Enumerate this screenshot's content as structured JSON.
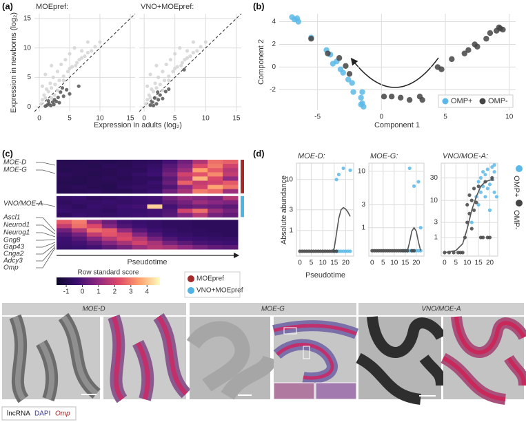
{
  "panel_labels": [
    "(a)",
    "(b)",
    "(c)",
    "(d)",
    "(e)"
  ],
  "chart_data": [
    {
      "type": "scatter",
      "title": "MOEpref:",
      "x_label": "Expression in adults (log₂)",
      "y_label": "Expression in newborns (log₂)",
      "xlim": [
        -0.8,
        15.8
      ],
      "ylim": [
        -0.8,
        15.8
      ],
      "xticks": [
        0,
        5,
        10,
        15
      ],
      "yticks": [
        0,
        5,
        10,
        15
      ],
      "grid": true,
      "identity_line": true,
      "series": [
        {
          "color": "#d4d4d4",
          "x": [
            0.3,
            0.5,
            0.8,
            1,
            1.2,
            1.5,
            1.8,
            2,
            2.3,
            2.6,
            3,
            3.3,
            3.6,
            4,
            4.3,
            4.7,
            5,
            5.4,
            5.8,
            6.2,
            6.6,
            7,
            7.5,
            8,
            8.6,
            9.2,
            10,
            1,
            1.5,
            2,
            2.5,
            3,
            4,
            5,
            6,
            7,
            8,
            0.5,
            1,
            2
          ],
          "values": [
            0.5,
            1.2,
            2,
            1.5,
            3,
            2.6,
            4,
            3.2,
            5,
            3.8,
            6,
            4.5,
            7.2,
            5.2,
            8,
            6,
            9,
            6.8,
            10,
            7.5,
            8,
            9.5,
            8.6,
            11,
            9.5,
            10.2,
            11,
            0.2,
            0.8,
            1.5,
            2,
            2.8,
            4.5,
            6.5,
            7,
            8.3,
            9.2,
            3.5,
            5.5,
            7
          ]
        },
        {
          "color": "#555555",
          "x": [
            1,
            1.3,
            1.6,
            1.9,
            2.2,
            2.5,
            2.8,
            3.1,
            3.5,
            4,
            4.5,
            5,
            1.5,
            2.4,
            3.3,
            6.5,
            3.8
          ],
          "values": [
            0.1,
            0.3,
            0.5,
            0.2,
            0.8,
            1.2,
            0.9,
            1.6,
            2.5,
            1.8,
            2.9,
            2.2,
            1,
            0.4,
            0.7,
            3.5,
            3.2
          ]
        }
      ]
    },
    {
      "type": "scatter",
      "title": "VNO+MOEpref:",
      "xlim": [
        -0.8,
        15.8
      ],
      "ylim": [
        -0.8,
        15.8
      ],
      "xticks": [
        0,
        5,
        10,
        15
      ],
      "grid": true,
      "identity_line": true,
      "series": [
        {
          "color": "#d4d4d4",
          "x": [
            0.3,
            0.5,
            0.8,
            1,
            1.2,
            1.5,
            1.8,
            2,
            2.3,
            2.6,
            3,
            3.3,
            3.6,
            4,
            4.3,
            4.7,
            5,
            5.4,
            5.8,
            6.2,
            6.6,
            7,
            7.5,
            8,
            8.6,
            9.2,
            10,
            1,
            1.5,
            2,
            2.5,
            3,
            4,
            5,
            6,
            7,
            8,
            0.5,
            1,
            2
          ],
          "values": [
            0.5,
            1.2,
            2,
            1.5,
            3,
            2.6,
            4,
            3.2,
            5,
            3.8,
            6,
            4.5,
            7.2,
            5.2,
            8,
            6,
            9,
            6.8,
            10,
            7.5,
            8,
            9.5,
            8.6,
            11,
            9.5,
            10.2,
            11,
            0.2,
            0.8,
            1.5,
            2,
            2.8,
            4.5,
            6.5,
            7,
            8.3,
            9.2,
            3.5,
            5.5,
            7
          ]
        },
        {
          "color": "#555555",
          "x": [
            1,
            1.3,
            1.7,
            2,
            2.3,
            2.6,
            3,
            3.5,
            4,
            2.2,
            1.5,
            6.5
          ],
          "values": [
            0.3,
            0.8,
            1.5,
            0.5,
            1.2,
            2,
            1.4,
            2.6,
            3,
            2.5,
            0.2,
            6.3
          ]
        }
      ]
    },
    {
      "type": "scatter",
      "x_label": "Component 1",
      "y_label": "Component 2",
      "xlim": [
        -8,
        10.5
      ],
      "ylim": [
        -3.8,
        4.7
      ],
      "xticks": [
        -5,
        0,
        5,
        10
      ],
      "yticks": [
        -2,
        0,
        2,
        4
      ],
      "grid": true,
      "legend": "lower right",
      "series": [
        {
          "name": "OMP+",
          "color": "#5bb8e8",
          "x": [
            -7,
            -6.8,
            -6.5,
            -6.6,
            -5.5,
            -4.3,
            -4,
            -3.8,
            -3.5,
            -3.2,
            -3,
            -2.6,
            -2.3,
            -2.2,
            -1.5,
            -1.6,
            -1.5,
            -1.4,
            -1.6
          ],
          "values": [
            4.4,
            4.2,
            4.0,
            4.3,
            2.6,
            1.5,
            1.1,
            0.3,
            0.5,
            -0.2,
            -0.5,
            -1.1,
            -1.4,
            -2.2,
            -2.2,
            -2.7,
            -3.2,
            -3.5,
            -3.3
          ]
        },
        {
          "name": "OMP-",
          "color": "#444444",
          "x": [
            -5.5,
            -4.2,
            -3.3,
            -2.5,
            -2.8,
            0.2,
            0.8,
            1.5,
            2.2,
            3,
            3.2,
            4.4,
            4.7,
            5.5,
            6.5,
            6.8,
            7.3,
            7.5,
            8.2,
            8.5,
            9,
            9.2,
            9.5,
            9.3
          ],
          "values": [
            2.5,
            1.2,
            0.8,
            -0.6,
            0.1,
            -2.6,
            -2.6,
            -2.7,
            -2.9,
            -2.6,
            -2.9,
            0,
            -0.2,
            0.7,
            1.2,
            1.5,
            2.0,
            1.8,
            2.5,
            3.0,
            3.2,
            3.5,
            3.3,
            3.4
          ]
        }
      ]
    },
    {
      "type": "heatmap",
      "x_label": "Pseudotime",
      "annotations": [
        "MOE-D",
        "MOE-G",
        "VNO/MOE-A",
        "Ascl1",
        "Neurod1",
        "Neurog1",
        "Gng8",
        "Gap43",
        "Cnga2",
        "Adcy3",
        "Omp"
      ],
      "colormap": [
        "#0d0829",
        "#3b0f70",
        "#8c2981",
        "#de4968",
        "#fe9f6d",
        "#fcfdbf"
      ],
      "zlim": [
        -1.6,
        4.8
      ],
      "colorbar_label": "Row standard score",
      "colorbar_ticks": [
        -1,
        0,
        1,
        2,
        3,
        4
      ],
      "series": [
        {
          "name": "MOEpref",
          "color": "#a52a2a"
        },
        {
          "name": "VNO+MOEpref",
          "color": "#4fb3e3"
        }
      ],
      "blocks": [
        [
          [
            -0.9,
            -0.9,
            -0.8,
            -0.9,
            -0.8,
            -0.7,
            -0.6,
            -0.2,
            0.5,
            1.5,
            2.8,
            2.6
          ],
          [
            -0.8,
            -0.8,
            -0.9,
            -0.7,
            -0.8,
            -0.6,
            -0.5,
            0.1,
            0.8,
            2.2,
            3.0,
            2.0
          ],
          [
            -0.9,
            -0.8,
            -0.8,
            -0.8,
            -0.7,
            -0.7,
            -0.4,
            0.3,
            1.2,
            3.5,
            2.5,
            1.6
          ],
          [
            -0.7,
            -0.8,
            -0.9,
            -0.8,
            -0.7,
            -0.5,
            -0.3,
            0.6,
            2.0,
            2.4,
            3.2,
            1.8
          ],
          [
            -0.8,
            -0.9,
            -0.8,
            -0.7,
            -0.8,
            -0.6,
            -0.6,
            0.2,
            1.6,
            3.8,
            2.2,
            1.0
          ],
          [
            -0.9,
            -0.9,
            -0.8,
            -0.8,
            -0.7,
            -0.6,
            -0.4,
            0.4,
            2.6,
            1.8,
            2.0,
            2.5
          ],
          [
            -0.8,
            -0.7,
            -0.8,
            -0.9,
            -0.6,
            -0.5,
            -0.5,
            0.0,
            1.0,
            2.0,
            3.6,
            2.9
          ],
          [
            -0.9,
            -0.8,
            -0.7,
            -0.8,
            -0.8,
            -0.6,
            -0.4,
            0.5,
            1.4,
            3.0,
            2.7,
            1.2
          ]
        ],
        [
          [
            -0.5,
            -0.4,
            -0.6,
            -0.5,
            -0.4,
            -0.3,
            -0.2,
            0.5,
            1.0,
            0.8,
            0.6,
            1.5
          ],
          [
            -0.6,
            -0.5,
            -0.5,
            -0.4,
            -0.5,
            -0.4,
            -0.3,
            0.2,
            0.6,
            1.2,
            0.9,
            0.7
          ],
          [
            -0.5,
            -0.6,
            -0.4,
            -0.5,
            -0.3,
            -0.2,
            4.2,
            -0.2,
            0.3,
            0.5,
            0.4,
            0.2
          ],
          [
            -0.4,
            -0.5,
            -0.5,
            -0.6,
            -0.4,
            -0.4,
            -0.2,
            0.0,
            2.0,
            2.8,
            1.2,
            0.6
          ],
          [
            -0.6,
            -0.4,
            -0.5,
            -0.5,
            -0.4,
            -0.3,
            -0.2,
            0.1,
            0.8,
            1.6,
            0.6,
            0.3
          ]
        ],
        [
          [
            2.5,
            3.0,
            1.2,
            0.4,
            -0.2,
            -0.4,
            -0.5,
            -0.6,
            -0.6,
            -0.7,
            -0.7,
            -0.7
          ],
          [
            1.8,
            2.8,
            2.2,
            0.8,
            0.0,
            -0.3,
            -0.5,
            -0.6,
            -0.6,
            -0.7,
            -0.7,
            -0.7
          ],
          [
            0.5,
            1.5,
            2.8,
            2.5,
            1.0,
            0.1,
            -0.3,
            -0.5,
            -0.6,
            -0.6,
            -0.7,
            -0.7
          ],
          [
            0.0,
            0.6,
            1.8,
            2.4,
            2.0,
            0.8,
            0.0,
            -0.4,
            -0.5,
            -0.6,
            -0.6,
            -0.7
          ],
          [
            -0.3,
            0.1,
            0.8,
            1.6,
            2.2,
            1.6,
            0.6,
            0.0,
            -0.3,
            -0.4,
            -0.5,
            -0.5
          ],
          [
            -0.4,
            -0.2,
            0.2,
            0.8,
            1.4,
            2.0,
            1.4,
            0.6,
            0.2,
            -0.1,
            -0.2,
            -0.3
          ],
          [
            -0.5,
            -0.4,
            -0.2,
            0.2,
            0.6,
            1.2,
            1.6,
            1.4,
            1.0,
            0.6,
            0.3,
            0.2
          ]
        ]
      ]
    },
    {
      "type": "scatter",
      "title": "MOE-D:",
      "y_label": "Absolute abundance",
      "x_label": "Pseudotime",
      "yscale": "symlog",
      "xlim": [
        -1.5,
        23.5
      ],
      "ylim": [
        -0.15,
        18
      ],
      "xticks": [
        0,
        5,
        10,
        15,
        20
      ],
      "yticks": [
        1,
        3,
        10
      ],
      "grid": true,
      "legend": "right",
      "series": [
        {
          "name": "OMP+",
          "color": "#5bb8e8",
          "x": [
            15,
            16,
            17,
            18,
            19,
            20,
            21,
            22,
            16,
            17,
            19,
            22
          ],
          "values": [
            0,
            0,
            0,
            0,
            0,
            0,
            0,
            0,
            10,
            12,
            15,
            14
          ]
        },
        {
          "name": "OMP-",
          "color": "#444444",
          "x": [
            0,
            1,
            2,
            3,
            4,
            5,
            6,
            7,
            8,
            9,
            10,
            11,
            12,
            13,
            14,
            15,
            16
          ],
          "values": [
            0,
            0,
            0,
            0,
            0,
            0,
            0,
            0,
            0,
            0,
            0,
            0,
            0,
            0,
            0,
            0,
            0
          ]
        }
      ],
      "fit": {
        "color": "#555555",
        "x": [
          0,
          5,
          10,
          14,
          15,
          16,
          17,
          18,
          19,
          20,
          21,
          22
        ],
        "values": [
          0,
          0,
          0,
          0,
          0.1,
          0.8,
          2,
          3,
          3.3,
          3.1,
          2.7,
          2.2
        ]
      }
    },
    {
      "type": "scatter",
      "title": "MOE-G:",
      "yscale": "symlog",
      "xlim": [
        -1.5,
        23.5
      ],
      "ylim": [
        -0.15,
        13
      ],
      "xticks": [
        0,
        5,
        10,
        15,
        20
      ],
      "yticks": [
        1,
        3,
        10
      ],
      "grid": true,
      "series": [
        {
          "color": "#5bb8e8",
          "x": [
            14,
            15,
            16,
            17,
            18,
            19,
            20,
            21,
            22,
            17,
            19,
            21,
            22
          ],
          "values": [
            0,
            0,
            0,
            0,
            0,
            0,
            0,
            0,
            0,
            11,
            6,
            7,
            1
          ]
        },
        {
          "color": "#444444",
          "x": [
            0,
            1,
            2,
            3,
            4,
            5,
            6,
            7,
            8,
            9,
            10,
            11,
            12,
            13,
            14,
            15,
            16,
            18,
            19
          ],
          "values": [
            0,
            0,
            0,
            0,
            0,
            0,
            0,
            0,
            0,
            0,
            0,
            0,
            0,
            0,
            0,
            0,
            0,
            0,
            0
          ]
        }
      ],
      "fit": {
        "color": "#555555",
        "x": [
          0,
          5,
          10,
          16,
          17,
          18,
          19,
          20,
          21,
          22
        ],
        "values": [
          0,
          0,
          0,
          0,
          0.3,
          0.8,
          1,
          0.8,
          0.3,
          0
        ]
      }
    },
    {
      "type": "scatter",
      "title": "VNO/MOE-A:",
      "yscale": "symlog",
      "xlim": [
        -1.5,
        23.5
      ],
      "ylim": [
        -0.15,
        60
      ],
      "xticks": [
        0,
        5,
        10,
        15,
        20
      ],
      "yticks": [
        1,
        3,
        10,
        30
      ],
      "grid": true,
      "series": [
        {
          "color": "#5bb8e8",
          "x": [
            12,
            14,
            15,
            15,
            16,
            16,
            17,
            17,
            18,
            18,
            19,
            19,
            20,
            20,
            21,
            21,
            22,
            22,
            22,
            23
          ],
          "values": [
            3,
            12,
            25,
            8,
            30,
            15,
            40,
            20,
            12,
            35,
            18,
            45,
            6,
            22,
            28,
            50,
            40,
            15,
            55,
            12
          ]
        },
        {
          "color": "#444444",
          "x": [
            0,
            2,
            4,
            6,
            7,
            8,
            9,
            10,
            10,
            11,
            11,
            12,
            12,
            13,
            13,
            14,
            15,
            16,
            17,
            18,
            19,
            20,
            21
          ],
          "values": [
            0,
            0,
            0,
            0,
            0,
            0,
            1,
            3,
            8,
            5,
            13,
            10,
            2,
            18,
            6,
            9,
            20,
            1,
            1,
            25,
            1,
            1,
            30
          ]
        }
      ],
      "fit": {
        "color": "#555555",
        "x": [
          0,
          5,
          8,
          10,
          12,
          14,
          16,
          18,
          20,
          22
        ],
        "values": [
          0,
          0.1,
          0.5,
          2,
          6,
          12,
          20,
          25,
          27,
          27
        ]
      }
    }
  ],
  "images": {
    "headers": [
      "MOE-D",
      "MOE-G",
      "VNO/MOE-A"
    ],
    "legend": [
      "lncRNA",
      "DAPI",
      "Omp"
    ]
  }
}
